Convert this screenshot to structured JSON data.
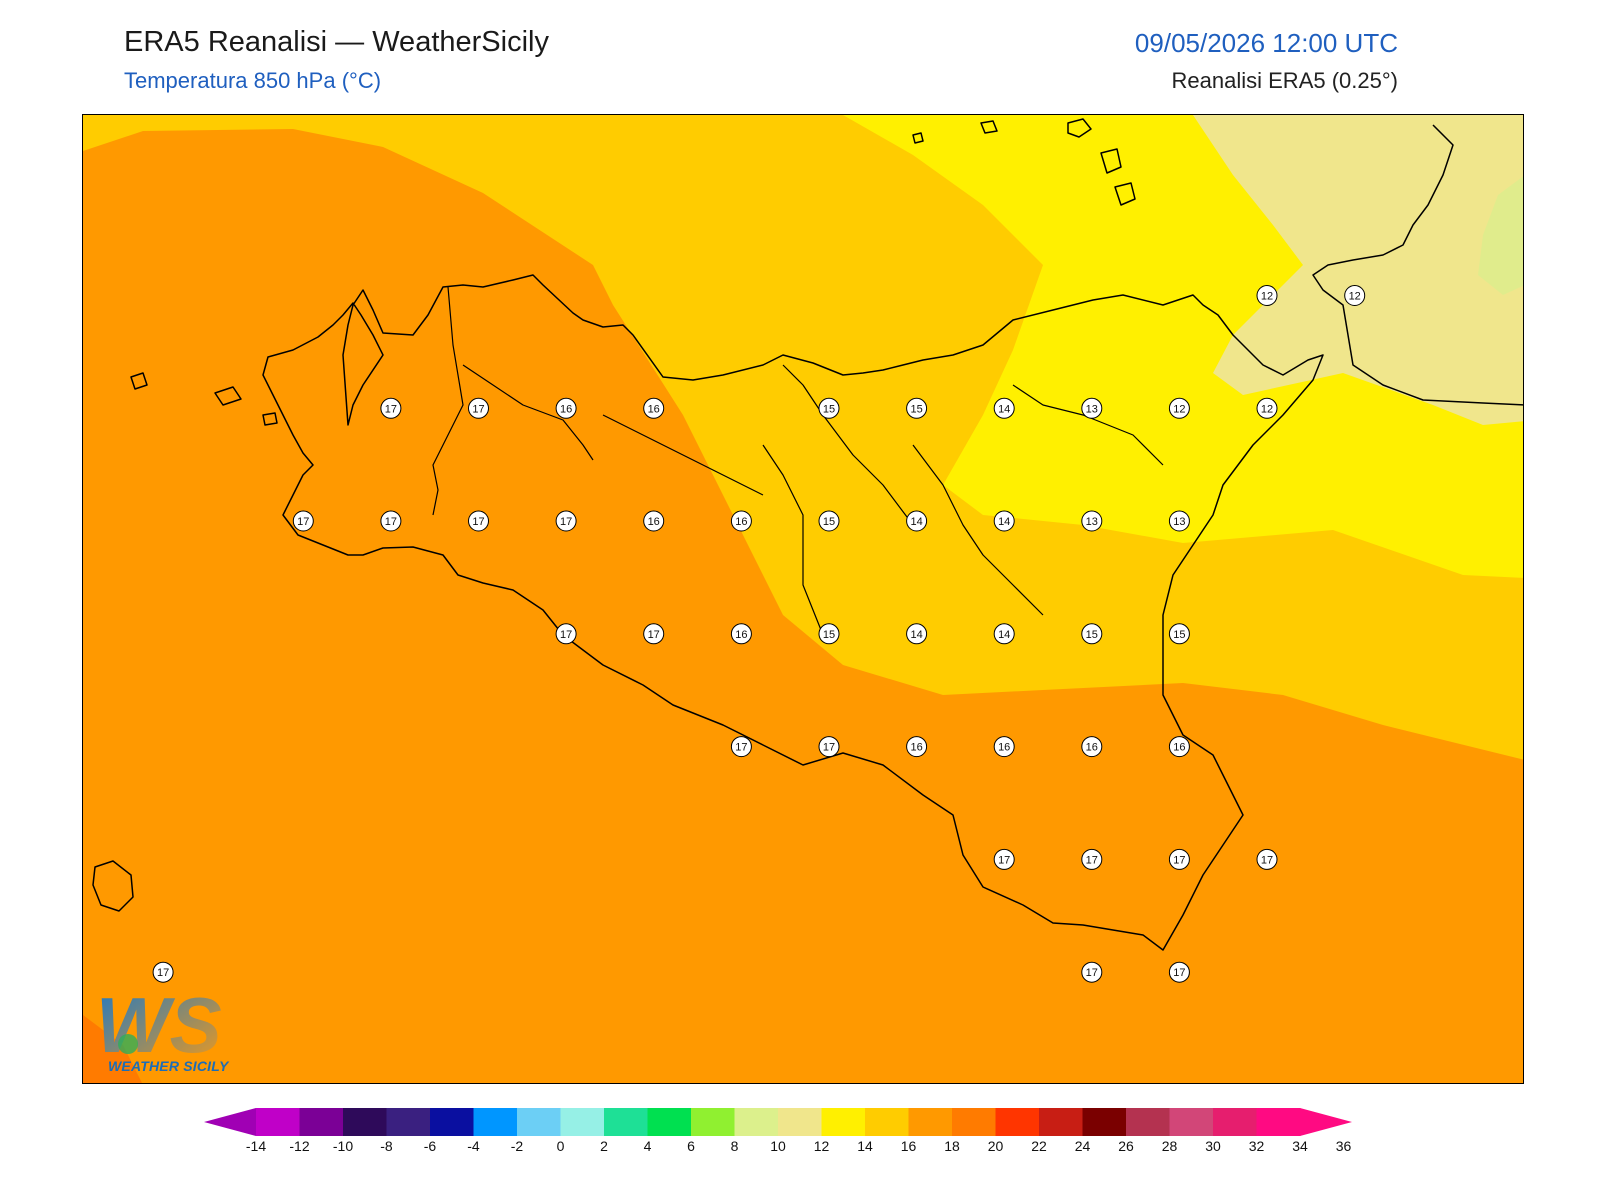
{
  "header": {
    "title": "ERA5 Reanalisi — WeatherSicily",
    "subtitle": "Temperatura 850 hPa (°C)",
    "datetime": "09/05/2026 12:00 UTC",
    "source": "Reanalisi ERA5 (0.25°)"
  },
  "logo": {
    "text": "WEATHER SICILY",
    "letters": "WS"
  },
  "colors": {
    "t12": "#f0e68c",
    "t14": "#fff000",
    "t16": "#ffcc00",
    "t18": "#ff9900",
    "t20": "#ff7b00",
    "coast": "#000000"
  },
  "colorbar": {
    "ticks": [
      "-14",
      "-12",
      "-10",
      "-8",
      "-6",
      "-4",
      "-2",
      "0",
      "2",
      "4",
      "6",
      "8",
      "10",
      "12",
      "14",
      "16",
      "18",
      "20",
      "22",
      "24",
      "26",
      "28",
      "30",
      "32",
      "34",
      "36"
    ],
    "colors": [
      "#c000c8",
      "#7b0096",
      "#2e0a5a",
      "#3a2080",
      "#0a0fa0",
      "#0096ff",
      "#6ccff5",
      "#96f0e6",
      "#1ee096",
      "#00e050",
      "#90f030",
      "#dcf08c",
      "#f0e68c",
      "#fff000",
      "#ffcc00",
      "#ff9900",
      "#ff7b00",
      "#ff3500",
      "#c81e14",
      "#7a0000",
      "#b43250",
      "#d24678",
      "#e61e6e",
      "#ff0a82"
    ],
    "under_color": "#a000b4",
    "over_color": "#ff0a82"
  },
  "stations": [
    {
      "value": "17",
      "lon": 12.3,
      "lat": 38.2
    },
    {
      "value": "17",
      "lon": 12.8,
      "lat": 38.2
    },
    {
      "value": "16",
      "lon": 13.3,
      "lat": 38.2
    },
    {
      "value": "16",
      "lon": 13.8,
      "lat": 38.2
    },
    {
      "value": "15",
      "lon": 14.8,
      "lat": 38.2
    },
    {
      "value": "15",
      "lon": 15.3,
      "lat": 38.2
    },
    {
      "value": "14",
      "lon": 15.8,
      "lat": 38.2
    },
    {
      "value": "13",
      "lon": 16.3,
      "lat": 38.2
    },
    {
      "value": "12",
      "lon": 16.8,
      "lat": 38.2
    },
    {
      "value": "12",
      "lon": 17.3,
      "lat": 38.2
    },
    {
      "value": "12",
      "lon": 17.3,
      "lat": 38.7
    },
    {
      "value": "12",
      "lon": 17.8,
      "lat": 38.7
    },
    {
      "value": "17",
      "lon": 11.8,
      "lat": 37.7
    },
    {
      "value": "17",
      "lon": 12.3,
      "lat": 37.7
    },
    {
      "value": "17",
      "lon": 12.8,
      "lat": 37.7
    },
    {
      "value": "17",
      "lon": 13.3,
      "lat": 37.7
    },
    {
      "value": "16",
      "lon": 13.8,
      "lat": 37.7
    },
    {
      "value": "16",
      "lon": 14.3,
      "lat": 37.7
    },
    {
      "value": "15",
      "lon": 14.8,
      "lat": 37.7
    },
    {
      "value": "14",
      "lon": 15.3,
      "lat": 37.7
    },
    {
      "value": "14",
      "lon": 15.8,
      "lat": 37.7
    },
    {
      "value": "13",
      "lon": 16.3,
      "lat": 37.7
    },
    {
      "value": "13",
      "lon": 16.8,
      "lat": 37.7
    },
    {
      "value": "17",
      "lon": 13.3,
      "lat": 37.2
    },
    {
      "value": "17",
      "lon": 13.8,
      "lat": 37.2
    },
    {
      "value": "16",
      "lon": 14.3,
      "lat": 37.2
    },
    {
      "value": "15",
      "lon": 14.8,
      "lat": 37.2
    },
    {
      "value": "14",
      "lon": 15.3,
      "lat": 37.2
    },
    {
      "value": "14",
      "lon": 15.8,
      "lat": 37.2
    },
    {
      "value": "15",
      "lon": 16.3,
      "lat": 37.2
    },
    {
      "value": "15",
      "lon": 16.8,
      "lat": 37.2
    },
    {
      "value": "17",
      "lon": 14.3,
      "lat": 36.7
    },
    {
      "value": "17",
      "lon": 14.8,
      "lat": 36.7
    },
    {
      "value": "16",
      "lon": 15.3,
      "lat": 36.7
    },
    {
      "value": "16",
      "lon": 15.8,
      "lat": 36.7
    },
    {
      "value": "16",
      "lon": 16.3,
      "lat": 36.7
    },
    {
      "value": "16",
      "lon": 16.8,
      "lat": 36.7
    },
    {
      "value": "17",
      "lon": 15.8,
      "lat": 36.2
    },
    {
      "value": "17",
      "lon": 16.3,
      "lat": 36.2
    },
    {
      "value": "17",
      "lon": 16.8,
      "lat": 36.2
    },
    {
      "value": "17",
      "lon": 17.3,
      "lat": 36.2
    },
    {
      "value": "17",
      "lon": 16.3,
      "lat": 35.7
    },
    {
      "value": "17",
      "lon": 16.8,
      "lat": 35.7
    },
    {
      "value": "17",
      "lon": 11.0,
      "lat": 35.7
    }
  ]
}
